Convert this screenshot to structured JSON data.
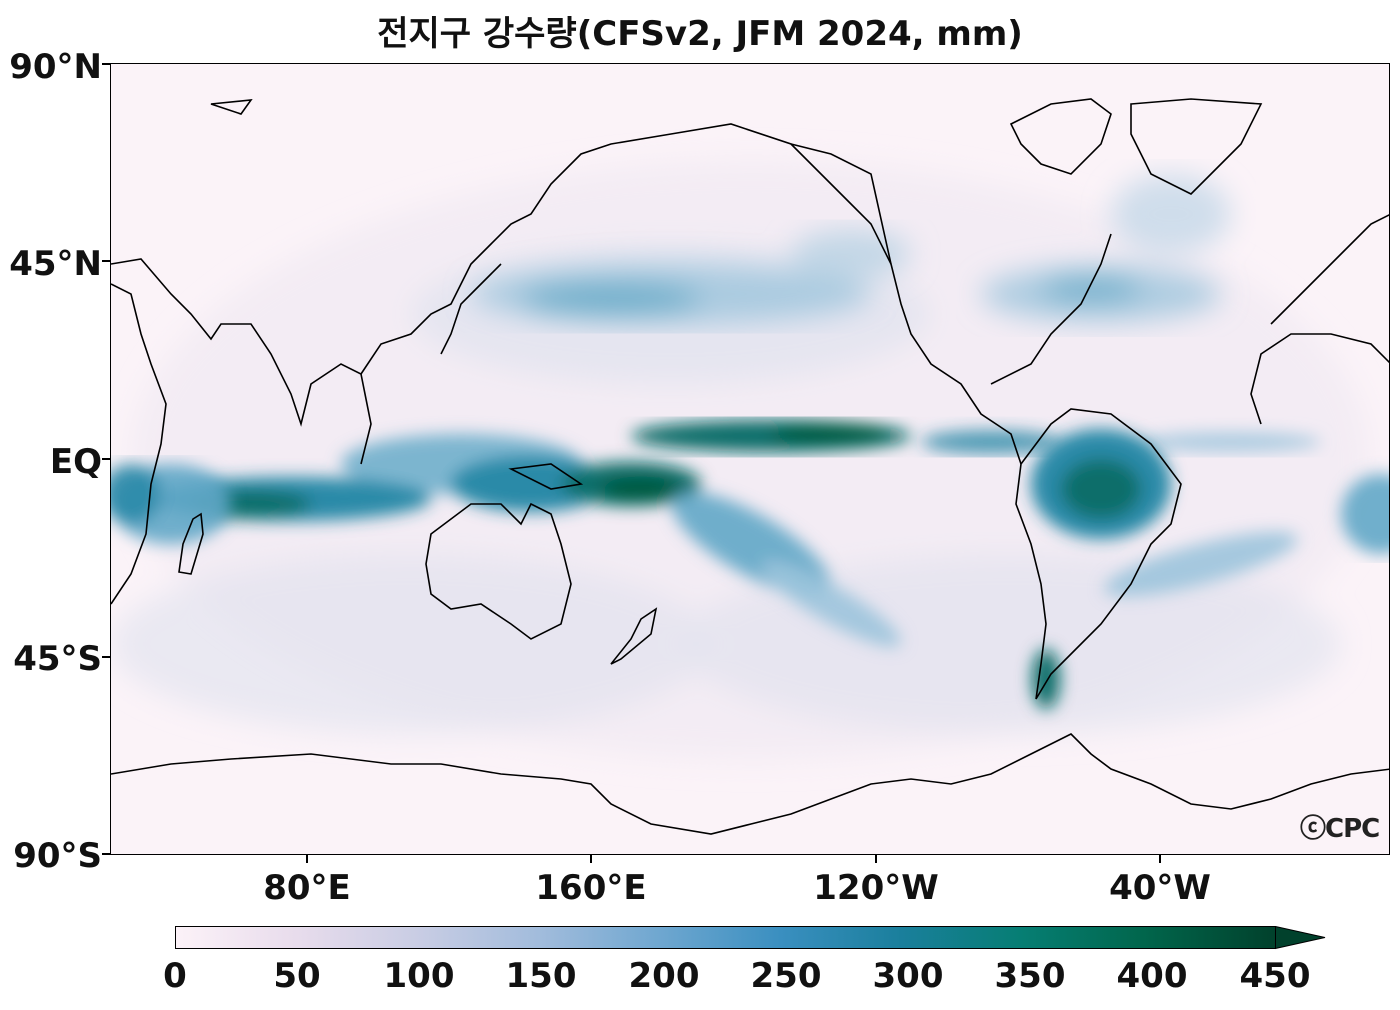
{
  "title": "전지구 강수량(CFSv2, JFM 2024, mm)",
  "lat_labels": [
    "90°N",
    "45°N",
    "EQ",
    "45°S",
    "90°S"
  ],
  "lon_labels": [
    "80°E",
    "160°E",
    "120°W",
    "40°W"
  ],
  "colorbar": {
    "ticks": [
      "0",
      "50",
      "100",
      "150",
      "200",
      "250",
      "300",
      "350",
      "400",
      "450"
    ],
    "range": [
      0,
      450
    ],
    "extend": "max",
    "colormap": [
      "#fcf2f8",
      "#e8dcec",
      "#c9cde4",
      "#a2bcdc",
      "#6fa7d0",
      "#3a8fc0",
      "#1a7f9c",
      "#067e73",
      "#01664c",
      "#01412c"
    ]
  },
  "watermark": "ⓒCPC",
  "bands": {
    "precipitation_colors": [
      "#d4e3ef",
      "#9cc4dc",
      "#5fa7c6",
      "#2b8aa8",
      "#0b6e6a",
      "#045a40"
    ]
  }
}
